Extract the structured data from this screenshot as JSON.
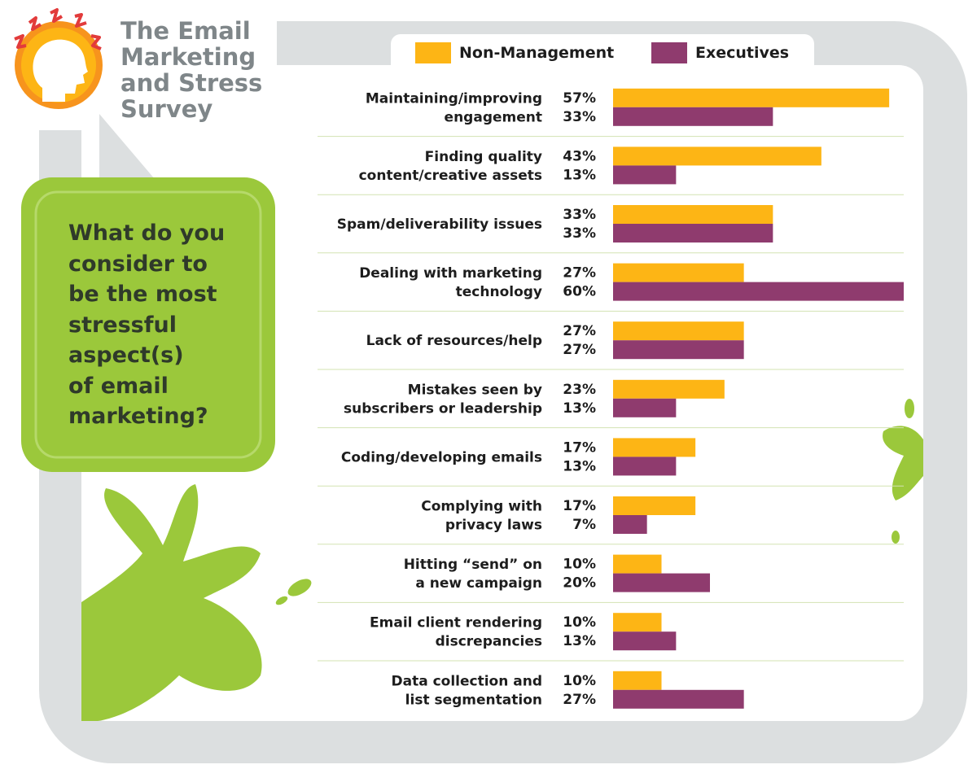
{
  "header": {
    "title_lines": [
      "The Email",
      "Marketing",
      "and Stress",
      "Survey"
    ]
  },
  "question": {
    "lines": [
      "What do you",
      "consider to",
      "be the most",
      "stressful",
      "aspect(s)",
      "of email",
      "marketing?"
    ]
  },
  "icons": {
    "logo": "stressed-head-icon"
  },
  "colors": {
    "non_management": "#fdb515",
    "executives": "#8f3b6e",
    "accent_green": "#9bc83b",
    "frame_gray": "#dcdfe0",
    "title_gray": "#7f8689"
  },
  "legend": {
    "non_management": "Non-Management",
    "executives": "Executives"
  },
  "chart_data": {
    "type": "bar",
    "orientation": "horizontal",
    "legend_position": "top",
    "xlim": [
      0,
      60
    ],
    "categories": [
      [
        "Maintaining/improving",
        "engagement"
      ],
      [
        "Finding quality",
        "content/creative assets"
      ],
      [
        "Spam/deliverability issues"
      ],
      [
        "Dealing with marketing",
        "technology"
      ],
      [
        "Lack of resources/help"
      ],
      [
        "Mistakes seen by",
        "subscribers or leadership"
      ],
      [
        "Coding/developing emails"
      ],
      [
        "Complying with",
        "privacy laws"
      ],
      [
        "Hitting “send” on",
        "a new campaign"
      ],
      [
        "Email client rendering",
        "discrepancies"
      ],
      [
        "Data collection and",
        "list segmentation"
      ]
    ],
    "series": [
      {
        "name": "Non-Management",
        "values": [
          57,
          43,
          33,
          27,
          27,
          23,
          17,
          17,
          10,
          10,
          10
        ],
        "labels": [
          "57%",
          "43%",
          "33%",
          "27%",
          "27%",
          "23%",
          "17%",
          "17%",
          "10%",
          "10%",
          "10%"
        ]
      },
      {
        "name": "Executives",
        "values": [
          33,
          13,
          33,
          60,
          27,
          13,
          13,
          7,
          20,
          13,
          27
        ],
        "labels": [
          "33%",
          "13%",
          "33%",
          "60%",
          "27%",
          "13%",
          "13%",
          "7%",
          "20%",
          "13%",
          "27%"
        ]
      }
    ]
  }
}
